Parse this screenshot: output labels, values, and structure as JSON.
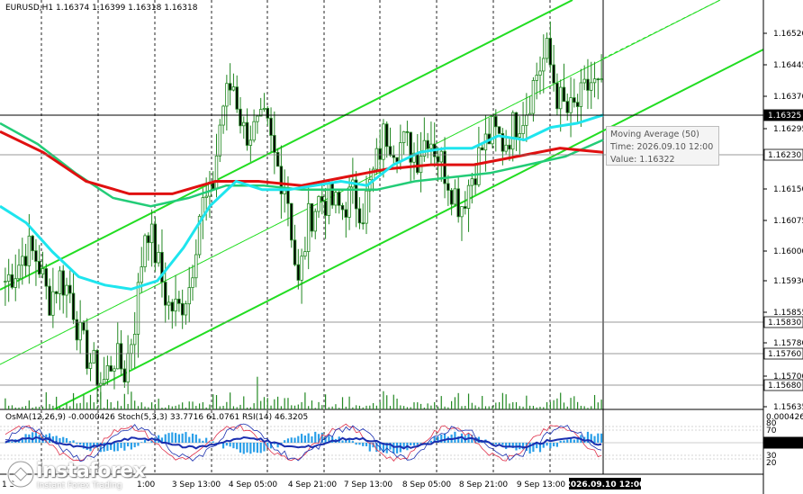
{
  "header": {
    "symbol": "EURUSD,H1",
    "ohlc": "1.16374 1.16399 1.16318 1.16318"
  },
  "indicator_header": "OsMA(12,26,9) -0.0000426  Stoch(5,3,3) 33.7716 61.0761  RSI(14) 46.3205",
  "tooltip": {
    "line1": "Moving Average (50)",
    "line2": "Time: 2026.09.10 12:00",
    "line3": "Value: 1.16322"
  },
  "logo": {
    "name": "instaforex",
    "tagline": "Instant Forex Trading"
  },
  "colors": {
    "ema200": "#e01010",
    "ema144": "#22cc77",
    "ema50": "#1ee5ee",
    "channel": "#22dd22",
    "candle": "#228822",
    "osma": "#2a9fe8",
    "stoch_main": "#1a2fb0",
    "stoch_signal": "#e0304a",
    "rsi": "#1a2fb0",
    "current_price_box": "#000000",
    "level_box": "#ffffff"
  },
  "chart_data": {
    "type": "candlestick",
    "symbol": "EURUSD",
    "timeframe": "H1",
    "ylim": [
      1.1561,
      1.1658
    ],
    "y_ticks": [
      "1.16520",
      "1.16445",
      "1.16370",
      "1.16295",
      "1.16150",
      "1.16075",
      "1.16000",
      "1.15930",
      "1.15855",
      "1.15780",
      "1.15700",
      "1.15635"
    ],
    "price_labels": [
      {
        "value": "1.16325",
        "style": "current"
      },
      {
        "value": "1.16230",
        "style": "level"
      },
      {
        "value": "1.15830",
        "style": "level"
      },
      {
        "value": "1.15760",
        "style": "level"
      },
      {
        "value": "1.15680",
        "style": "level"
      }
    ],
    "x_labels": [
      "3 Sep 13:00",
      "4 Sep 05:00",
      "4 Sep 21:00",
      "7 Sep 13:00",
      "8 Sep 05:00",
      "8 Sep 21:00",
      "9 Sep 13:00",
      "2026.09.10 12:00"
    ],
    "x_label_first": "1 S",
    "x_label_obscured": "1:00",
    "close_path": [
      1.1592,
      1.1595,
      1.16,
      1.1597,
      1.1587,
      1.1593,
      1.1589,
      1.1577,
      1.1572,
      1.1567,
      1.1574,
      1.157,
      1.1583,
      1.1607,
      1.1597,
      1.1586,
      1.1585,
      1.1591,
      1.161,
      1.1612,
      1.1634,
      1.164,
      1.1628,
      1.1628,
      1.163,
      1.162,
      1.1614,
      1.159,
      1.1607,
      1.1612,
      1.1611,
      1.1609,
      1.1613,
      1.1609,
      1.1618,
      1.1628,
      1.1625,
      1.1625,
      1.1622,
      1.1628,
      1.1622,
      1.1616,
      1.161,
      1.1617,
      1.1624,
      1.1628,
      1.1625,
      1.163,
      1.1633,
      1.1642,
      1.1647,
      1.1636,
      1.1632,
      1.1635,
      1.164,
      1.1637
    ],
    "series": [
      {
        "name": "Moving Average (50)",
        "values": [
          1.161,
          1.1606,
          1.1599,
          1.1593,
          1.1591,
          1.159,
          1.1592,
          1.16,
          1.161,
          1.1616,
          1.1614,
          1.1614,
          1.1615,
          1.1616,
          1.1615,
          1.162,
          1.1623,
          1.1624,
          1.1624,
          1.1627,
          1.1626,
          1.1629,
          1.163,
          1.1632
        ]
      },
      {
        "name": "",
        "values": [
          1.163,
          1.1625,
          1.1618,
          1.1612,
          1.161,
          1.1612,
          1.1615,
          1.1615,
          1.1614,
          1.1614,
          1.1614,
          1.1616,
          1.1617,
          1.1618,
          1.162,
          1.1622,
          1.1626
        ]
      },
      {
        "name": "",
        "values": [
          1.1628,
          1.1623,
          1.1616,
          1.1613,
          1.1613,
          1.1616,
          1.1616,
          1.1615,
          1.1617,
          1.1619,
          1.162,
          1.162,
          1.1622,
          1.1624,
          1.1623
        ]
      }
    ],
    "volume_scale": [
      0.15,
      0.3,
      0.7,
      1.0
    ]
  }
}
